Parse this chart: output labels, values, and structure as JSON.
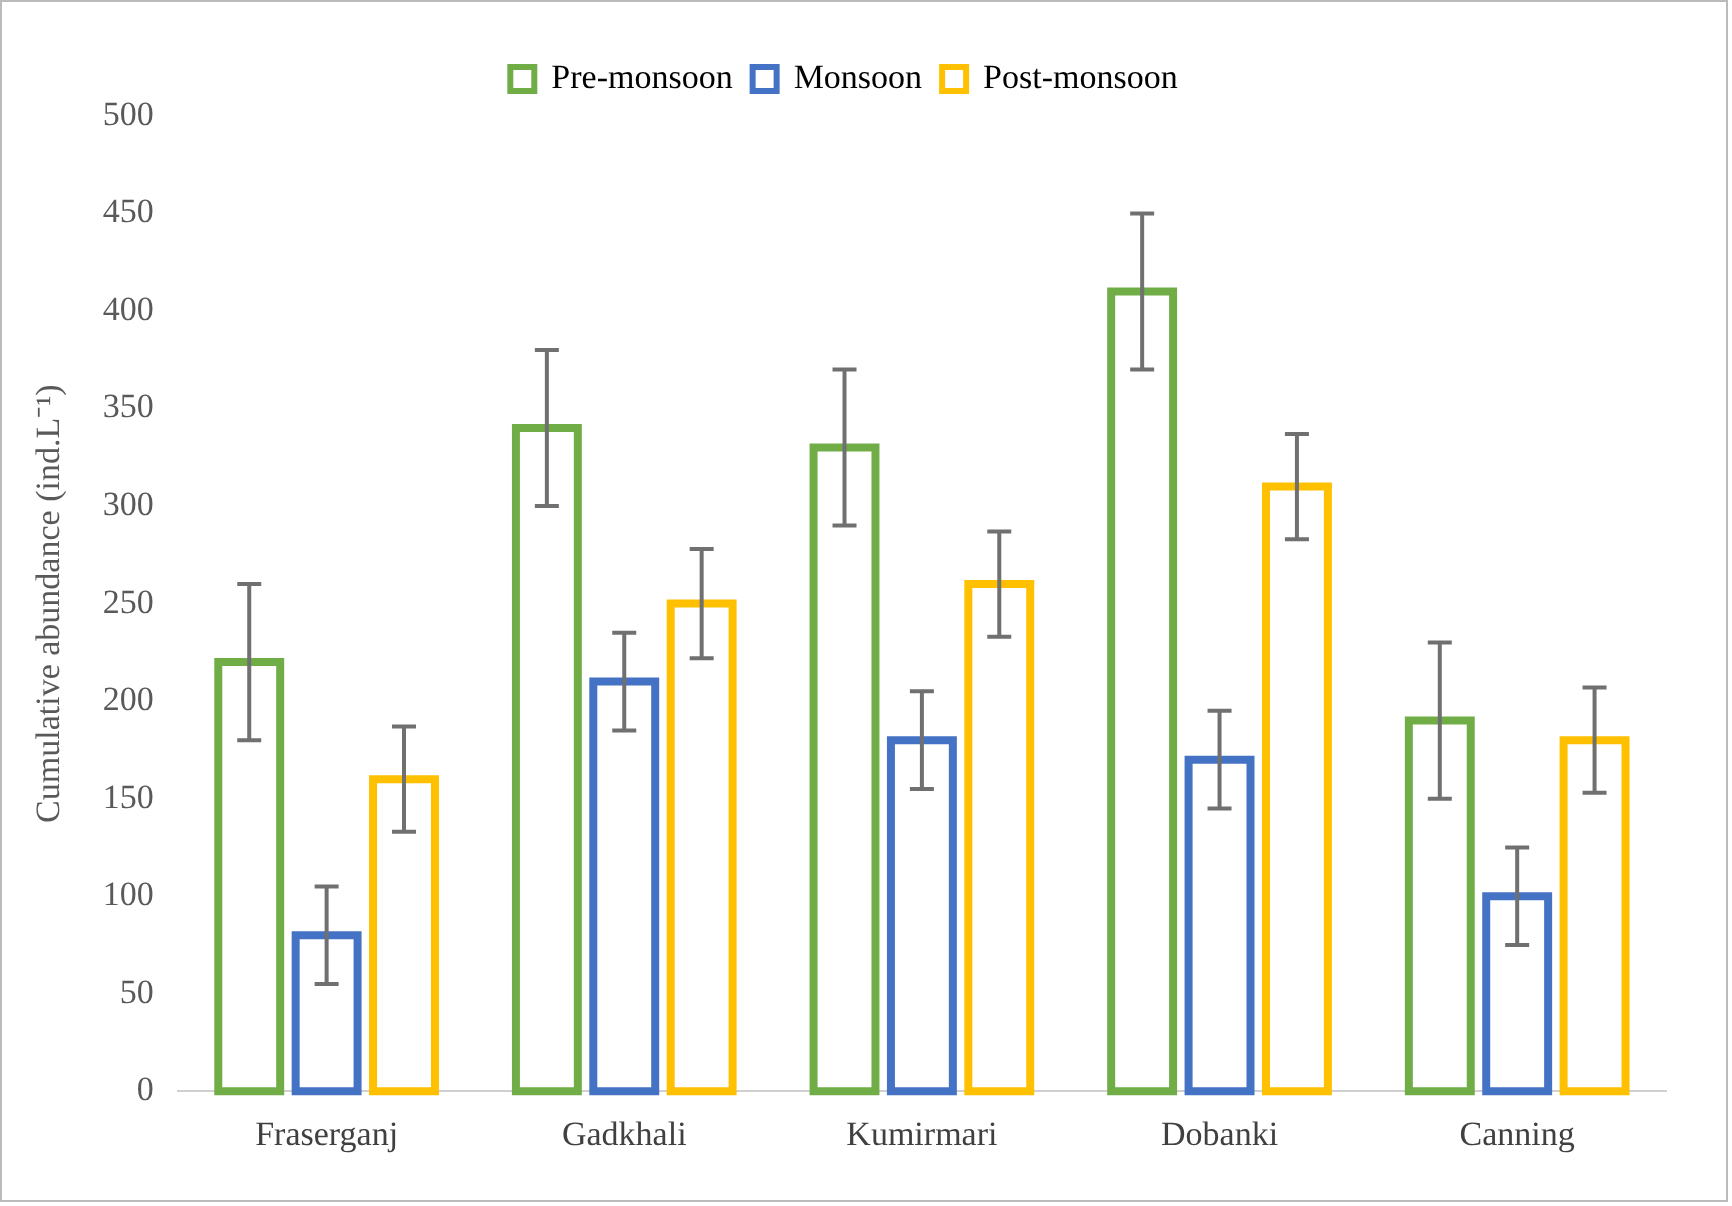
{
  "chart_data": {
    "type": "bar",
    "ylabel": "Cumulative abundance (ind.L⁻¹)",
    "categories": [
      "Fraserganj",
      "Gadkhali",
      "Kumirmari",
      "Dobanki",
      "Canning"
    ],
    "series": [
      {
        "name": "Pre-monsoon",
        "color": "#70ad47",
        "values": [
          220,
          340,
          330,
          410,
          190
        ],
        "errors": [
          40,
          40,
          40,
          40,
          40
        ]
      },
      {
        "name": "Monsoon",
        "color": "#4472c4",
        "values": [
          80,
          210,
          180,
          170,
          100
        ],
        "errors": [
          25,
          25,
          25,
          25,
          25
        ]
      },
      {
        "name": "Post-monsoon",
        "color": "#ffc000",
        "values": [
          160,
          250,
          260,
          310,
          180
        ],
        "errors": [
          27,
          28,
          27,
          27,
          27
        ]
      }
    ],
    "ylim": [
      0,
      500
    ],
    "yticks": [
      0,
      50,
      100,
      150,
      200,
      250,
      300,
      350,
      400,
      450,
      500
    ],
    "grid": false,
    "legend": "top"
  }
}
